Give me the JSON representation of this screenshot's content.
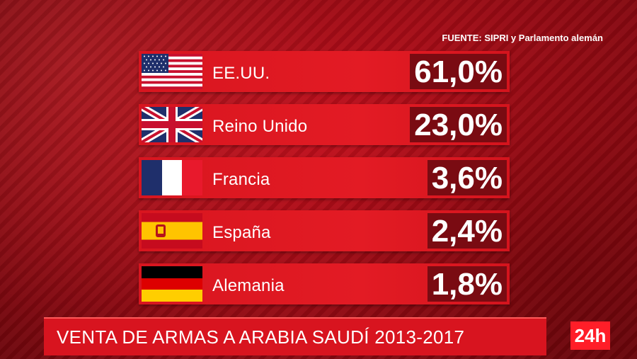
{
  "source": "FUENTE: SIPRI y Parlamento alemán",
  "banner": "VENTA DE ARMAS A ARABIA SAUDÍ 2013-2017",
  "logo": "24h",
  "colors": {
    "bar": "#e31b24",
    "value_box": "#7a0b12",
    "text": "#ffffff"
  },
  "chart_data": {
    "type": "table",
    "title": "VENTA DE ARMAS A ARABIA SAUDÍ 2013-2017",
    "source": "FUENTE: SIPRI y Parlamento alemán",
    "rows": [
      {
        "country": "EE.UU.",
        "flag": "usa-flag",
        "value": 61.0,
        "label": "61,0%"
      },
      {
        "country": "Reino Unido",
        "flag": "uk-flag",
        "value": 23.0,
        "label": "23,0%"
      },
      {
        "country": "Francia",
        "flag": "france-flag",
        "value": 3.6,
        "label": "3,6%"
      },
      {
        "country": "España",
        "flag": "spain-flag",
        "value": 2.4,
        "label": "2,4%"
      },
      {
        "country": "Alemania",
        "flag": "germany-flag",
        "value": 1.8,
        "label": "1,8%"
      }
    ]
  }
}
